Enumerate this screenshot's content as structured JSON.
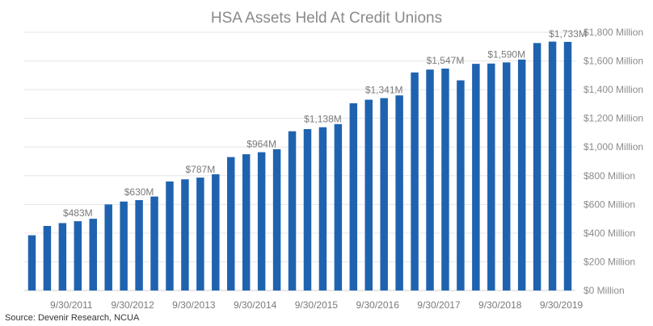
{
  "chart_data": {
    "type": "bar",
    "title": "HSA Assets Held At Credit Unions",
    "source": "Source: Devenir Research, NCUA",
    "color": "#1f63b0",
    "ylim": [
      0,
      1800
    ],
    "ytick_values": [
      0,
      200,
      400,
      600,
      800,
      1000,
      1200,
      1400,
      1600,
      1800
    ],
    "ytick_labels": [
      "$0 Million",
      "$200 Million",
      "$400 Million",
      "$600 Million",
      "$800 Million",
      "$1,000 Million",
      "$1,200 Million",
      "$1,400 Million",
      "$1,600 Million",
      "$1,800 Million"
    ],
    "y_axis_side": "right",
    "grid": true,
    "xtick_labels": [
      "9/30/2011",
      "9/30/2012",
      "9/30/2013",
      "9/30/2014",
      "9/30/2015",
      "9/30/2016",
      "9/30/2017",
      "9/30/2018",
      "9/30/2019"
    ],
    "xtick_indices": [
      3,
      7,
      11,
      15,
      19,
      23,
      27,
      31,
      35
    ],
    "values": [
      385,
      450,
      470,
      483,
      500,
      600,
      620,
      630,
      655,
      760,
      775,
      787,
      810,
      930,
      950,
      964,
      985,
      1110,
      1125,
      1138,
      1160,
      1305,
      1330,
      1341,
      1360,
      1520,
      1540,
      1547,
      1465,
      1580,
      1582,
      1590,
      1610,
      1725,
      1735,
      1733
    ],
    "data_labels": [
      {
        "index": 3,
        "text": "$483M"
      },
      {
        "index": 7,
        "text": "$630M"
      },
      {
        "index": 11,
        "text": "$787M"
      },
      {
        "index": 15,
        "text": "$964M"
      },
      {
        "index": 19,
        "text": "$1,138M"
      },
      {
        "index": 23,
        "text": "$1,341M"
      },
      {
        "index": 27,
        "text": "$1,547M"
      },
      {
        "index": 31,
        "text": "$1,590M"
      },
      {
        "index": 35,
        "text": "$1,733M"
      }
    ]
  }
}
